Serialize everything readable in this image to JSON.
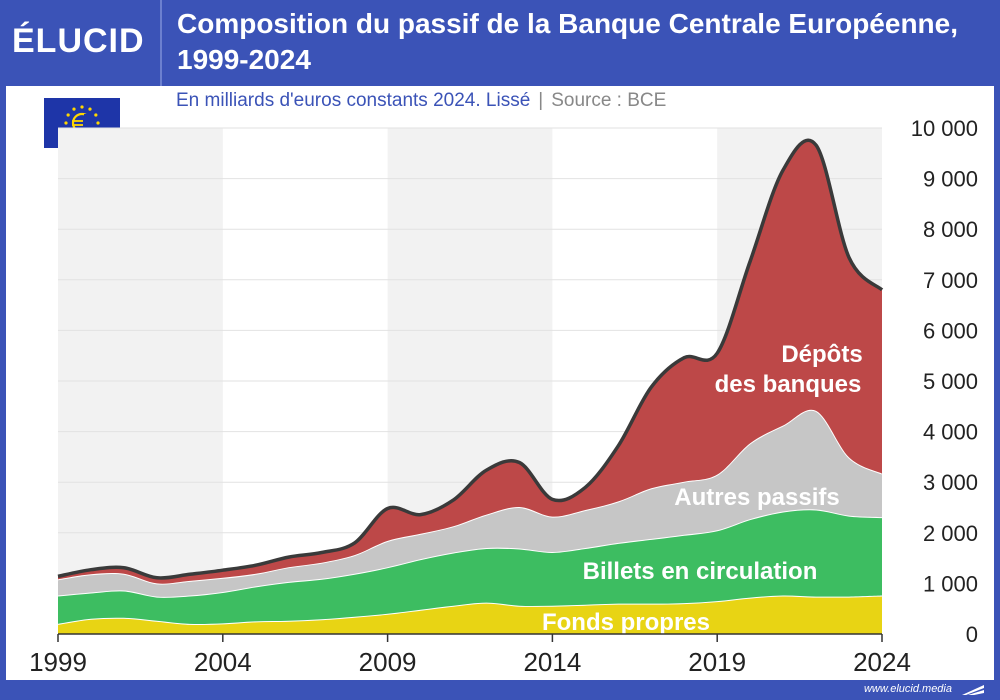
{
  "brand": {
    "logo": "ÉLUCID",
    "footer_url": "www.elucid.media"
  },
  "title": "Composition du passif de la Banque Centrale Européenne, 1999-2024",
  "subtitle": "En milliards d'euros constants 2024. Lissé",
  "separator": "|",
  "source": "Source : BCE",
  "icons": {
    "flag": "eu-flag-icon"
  },
  "colors": {
    "fonds_propres": "#e8d414",
    "billets": "#3dbd61",
    "autres": "#c6c6c6",
    "depots": "#bd4848",
    "outline": "#3a3a3a",
    "brand": "#3b53b7"
  },
  "chart_data": {
    "type": "area",
    "stacked": true,
    "x": [
      1999,
      2000,
      2001,
      2002,
      2003,
      2004,
      2005,
      2006,
      2007,
      2008,
      2009,
      2010,
      2011,
      2012,
      2013,
      2014,
      2015,
      2016,
      2017,
      2018,
      2019,
      2020,
      2021,
      2022,
      2023,
      2024
    ],
    "xticks": [
      "1999",
      "2004",
      "2009",
      "2014",
      "2019",
      "2024"
    ],
    "ylim": [
      0,
      10000
    ],
    "yticks": [
      "0",
      "1 000",
      "2 000",
      "3 000",
      "4 000",
      "5 000",
      "6 000",
      "7 000",
      "8 000",
      "9 000",
      "10 000"
    ],
    "grid": true,
    "series": [
      {
        "name": "Fonds propres",
        "values": [
          200,
          300,
          320,
          260,
          200,
          210,
          250,
          260,
          290,
          340,
          400,
          480,
          560,
          620,
          560,
          560,
          580,
          600,
          600,
          610,
          650,
          720,
          760,
          740,
          740,
          760
        ]
      },
      {
        "name": "Billets en circulation",
        "values": [
          560,
          520,
          540,
          480,
          560,
          620,
          690,
          770,
          800,
          850,
          920,
          1000,
          1050,
          1080,
          1130,
          1060,
          1120,
          1200,
          1280,
          1350,
          1400,
          1550,
          1660,
          1720,
          1600,
          1550
        ]
      },
      {
        "name": "Autres passifs",
        "values": [
          320,
          360,
          330,
          260,
          290,
          280,
          250,
          290,
          320,
          370,
          520,
          500,
          520,
          660,
          820,
          700,
          750,
          820,
          1000,
          1050,
          1100,
          1500,
          1700,
          1950,
          1150,
          860
        ]
      },
      {
        "name": "Dépôts des banques",
        "values": [
          60,
          90,
          120,
          110,
          130,
          150,
          170,
          200,
          200,
          240,
          640,
          380,
          520,
          880,
          880,
          340,
          450,
          1100,
          2000,
          2450,
          2400,
          3600,
          5050,
          5250,
          3950,
          3630
        ]
      }
    ],
    "labels": {
      "fonds_propres": "Fonds propres",
      "billets": "Billets en circulation",
      "autres": "Autres passifs",
      "depots_line1": "Dépôts",
      "depots_line2": "des banques"
    }
  }
}
